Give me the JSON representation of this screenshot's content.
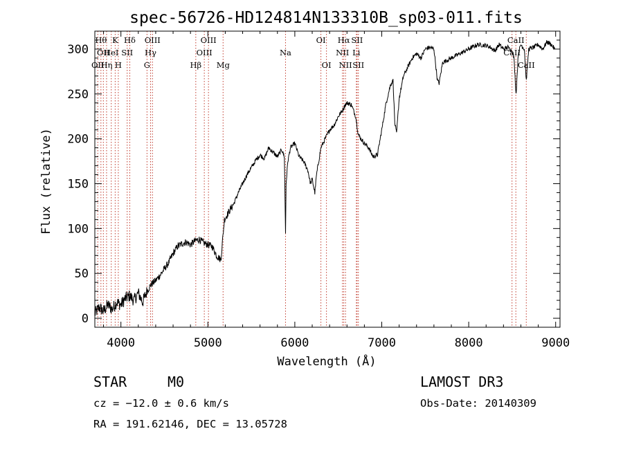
{
  "chart_data": {
    "type": "line",
    "title": "spec-56726-HD124814N133310B_sp03-011.fits",
    "xlabel": "Wavelength (Å)",
    "ylabel": "Flux (relative)",
    "xlim": [
      3700,
      9050
    ],
    "ylim": [
      -10,
      320
    ],
    "xticks": [
      4000,
      5000,
      6000,
      7000,
      8000,
      9000
    ],
    "yticks": [
      0,
      50,
      100,
      150,
      200,
      250,
      300
    ],
    "grid": false,
    "series": [
      {
        "name": "flux",
        "x": [
          3700,
          3750,
          3800,
          3850,
          3900,
          3950,
          4000,
          4050,
          4100,
          4150,
          4200,
          4250,
          4300,
          4350,
          4400,
          4450,
          4500,
          4550,
          4600,
          4650,
          4700,
          4750,
          4800,
          4850,
          4900,
          4950,
          5000,
          5050,
          5100,
          5150,
          5190,
          5250,
          5300,
          5350,
          5400,
          5450,
          5500,
          5550,
          5600,
          5650,
          5700,
          5750,
          5800,
          5850,
          5880,
          5893,
          5900,
          5920,
          5950,
          6000,
          6050,
          6100,
          6150,
          6180,
          6200,
          6230,
          6250,
          6300,
          6350,
          6400,
          6450,
          6500,
          6550,
          6580,
          6600,
          6650,
          6700,
          6730,
          6760,
          6800,
          6850,
          6900,
          6950,
          7000,
          7050,
          7100,
          7130,
          7150,
          7170,
          7200,
          7250,
          7300,
          7350,
          7400,
          7450,
          7500,
          7550,
          7600,
          7640,
          7660,
          7700,
          7800,
          7900,
          8000,
          8100,
          8200,
          8250,
          8300,
          8350,
          8400,
          8450,
          8500,
          8520,
          8545,
          8570,
          8600,
          8640,
          8662,
          8690,
          8750,
          8800,
          8850,
          8900,
          8950,
          8990
        ],
        "y": [
          5,
          12,
          8,
          15,
          10,
          18,
          15,
          22,
          25,
          20,
          28,
          18,
          30,
          38,
          42,
          48,
          55,
          62,
          72,
          80,
          83,
          85,
          82,
          86,
          88,
          84,
          82,
          80,
          70,
          65,
          110,
          120,
          128,
          140,
          150,
          160,
          168,
          176,
          182,
          178,
          190,
          185,
          180,
          188,
          180,
          95,
          150,
          175,
          190,
          195,
          180,
          175,
          165,
          150,
          155,
          140,
          160,
          190,
          200,
          210,
          215,
          225,
          232,
          238,
          240,
          238,
          225,
          205,
          200,
          195,
          190,
          180,
          182,
          210,
          240,
          260,
          265,
          218,
          205,
          245,
          270,
          280,
          290,
          295,
          290,
          300,
          302,
          300,
          265,
          262,
          285,
          290,
          295,
          300,
          305,
          304,
          302,
          298,
          305,
          300,
          302,
          298,
          290,
          250,
          295,
          305,
          300,
          265,
          300,
          302,
          305,
          300,
          308,
          305,
          300
        ]
      }
    ],
    "lines": [
      {
        "wl": 3734,
        "row": 2,
        "label": "OII"
      },
      {
        "wl": 3770,
        "row": 0,
        "label": "Hθ"
      },
      {
        "wl": 3798,
        "row": 1,
        "label": "OII"
      },
      {
        "wl": 3835,
        "row": 2,
        "label": "Hη"
      },
      {
        "wl": 3889,
        "row": 1,
        "label": "HeI"
      },
      {
        "wl": 3934,
        "row": 0,
        "label": "K"
      },
      {
        "wl": 3970,
        "row": 2,
        "label": "H"
      },
      {
        "wl": 4072,
        "row": 1,
        "label": "SII"
      },
      {
        "wl": 4102,
        "row": 0,
        "label": "Hδ"
      },
      {
        "wl": 4300,
        "row": 2,
        "label": "G"
      },
      {
        "wl": 4341,
        "row": 1,
        "label": "Hγ"
      },
      {
        "wl": 4363,
        "row": 0,
        "label": "OIII"
      },
      {
        "wl": 4861,
        "row": 2,
        "label": "Hβ"
      },
      {
        "wl": 4959,
        "row": 1,
        "label": "OIII"
      },
      {
        "wl": 5007,
        "row": 0,
        "label": "OIII"
      },
      {
        "wl": 5175,
        "row": 2,
        "label": "Mg"
      },
      {
        "wl": 5893,
        "row": 1,
        "label": "Na"
      },
      {
        "wl": 6300,
        "row": 0,
        "label": "OI"
      },
      {
        "wl": 6364,
        "row": 2,
        "label": "OI"
      },
      {
        "wl": 6548,
        "row": 1,
        "label": "NII"
      },
      {
        "wl": 6563,
        "row": 0,
        "label": "Hα"
      },
      {
        "wl": 6583,
        "row": 2,
        "label": "NII"
      },
      {
        "wl": 6708,
        "row": 1,
        "label": "Li"
      },
      {
        "wl": 6716,
        "row": 0,
        "label": "SII"
      },
      {
        "wl": 6731,
        "row": 2,
        "label": "SII"
      },
      {
        "wl": 8498,
        "row": 1,
        "label": "CaII"
      },
      {
        "wl": 8542,
        "row": 0,
        "label": "CaII"
      },
      {
        "wl": 8662,
        "row": 2,
        "label": "CaII"
      }
    ]
  },
  "info": {
    "class": "STAR",
    "subclass": "M0",
    "survey": "LAMOST DR3",
    "cz": "cz = −12.0 ± 0.6 km/s",
    "obs_date": "Obs-Date: 20140309",
    "coords": "RA = 191.62146, DEC =  13.05728"
  }
}
